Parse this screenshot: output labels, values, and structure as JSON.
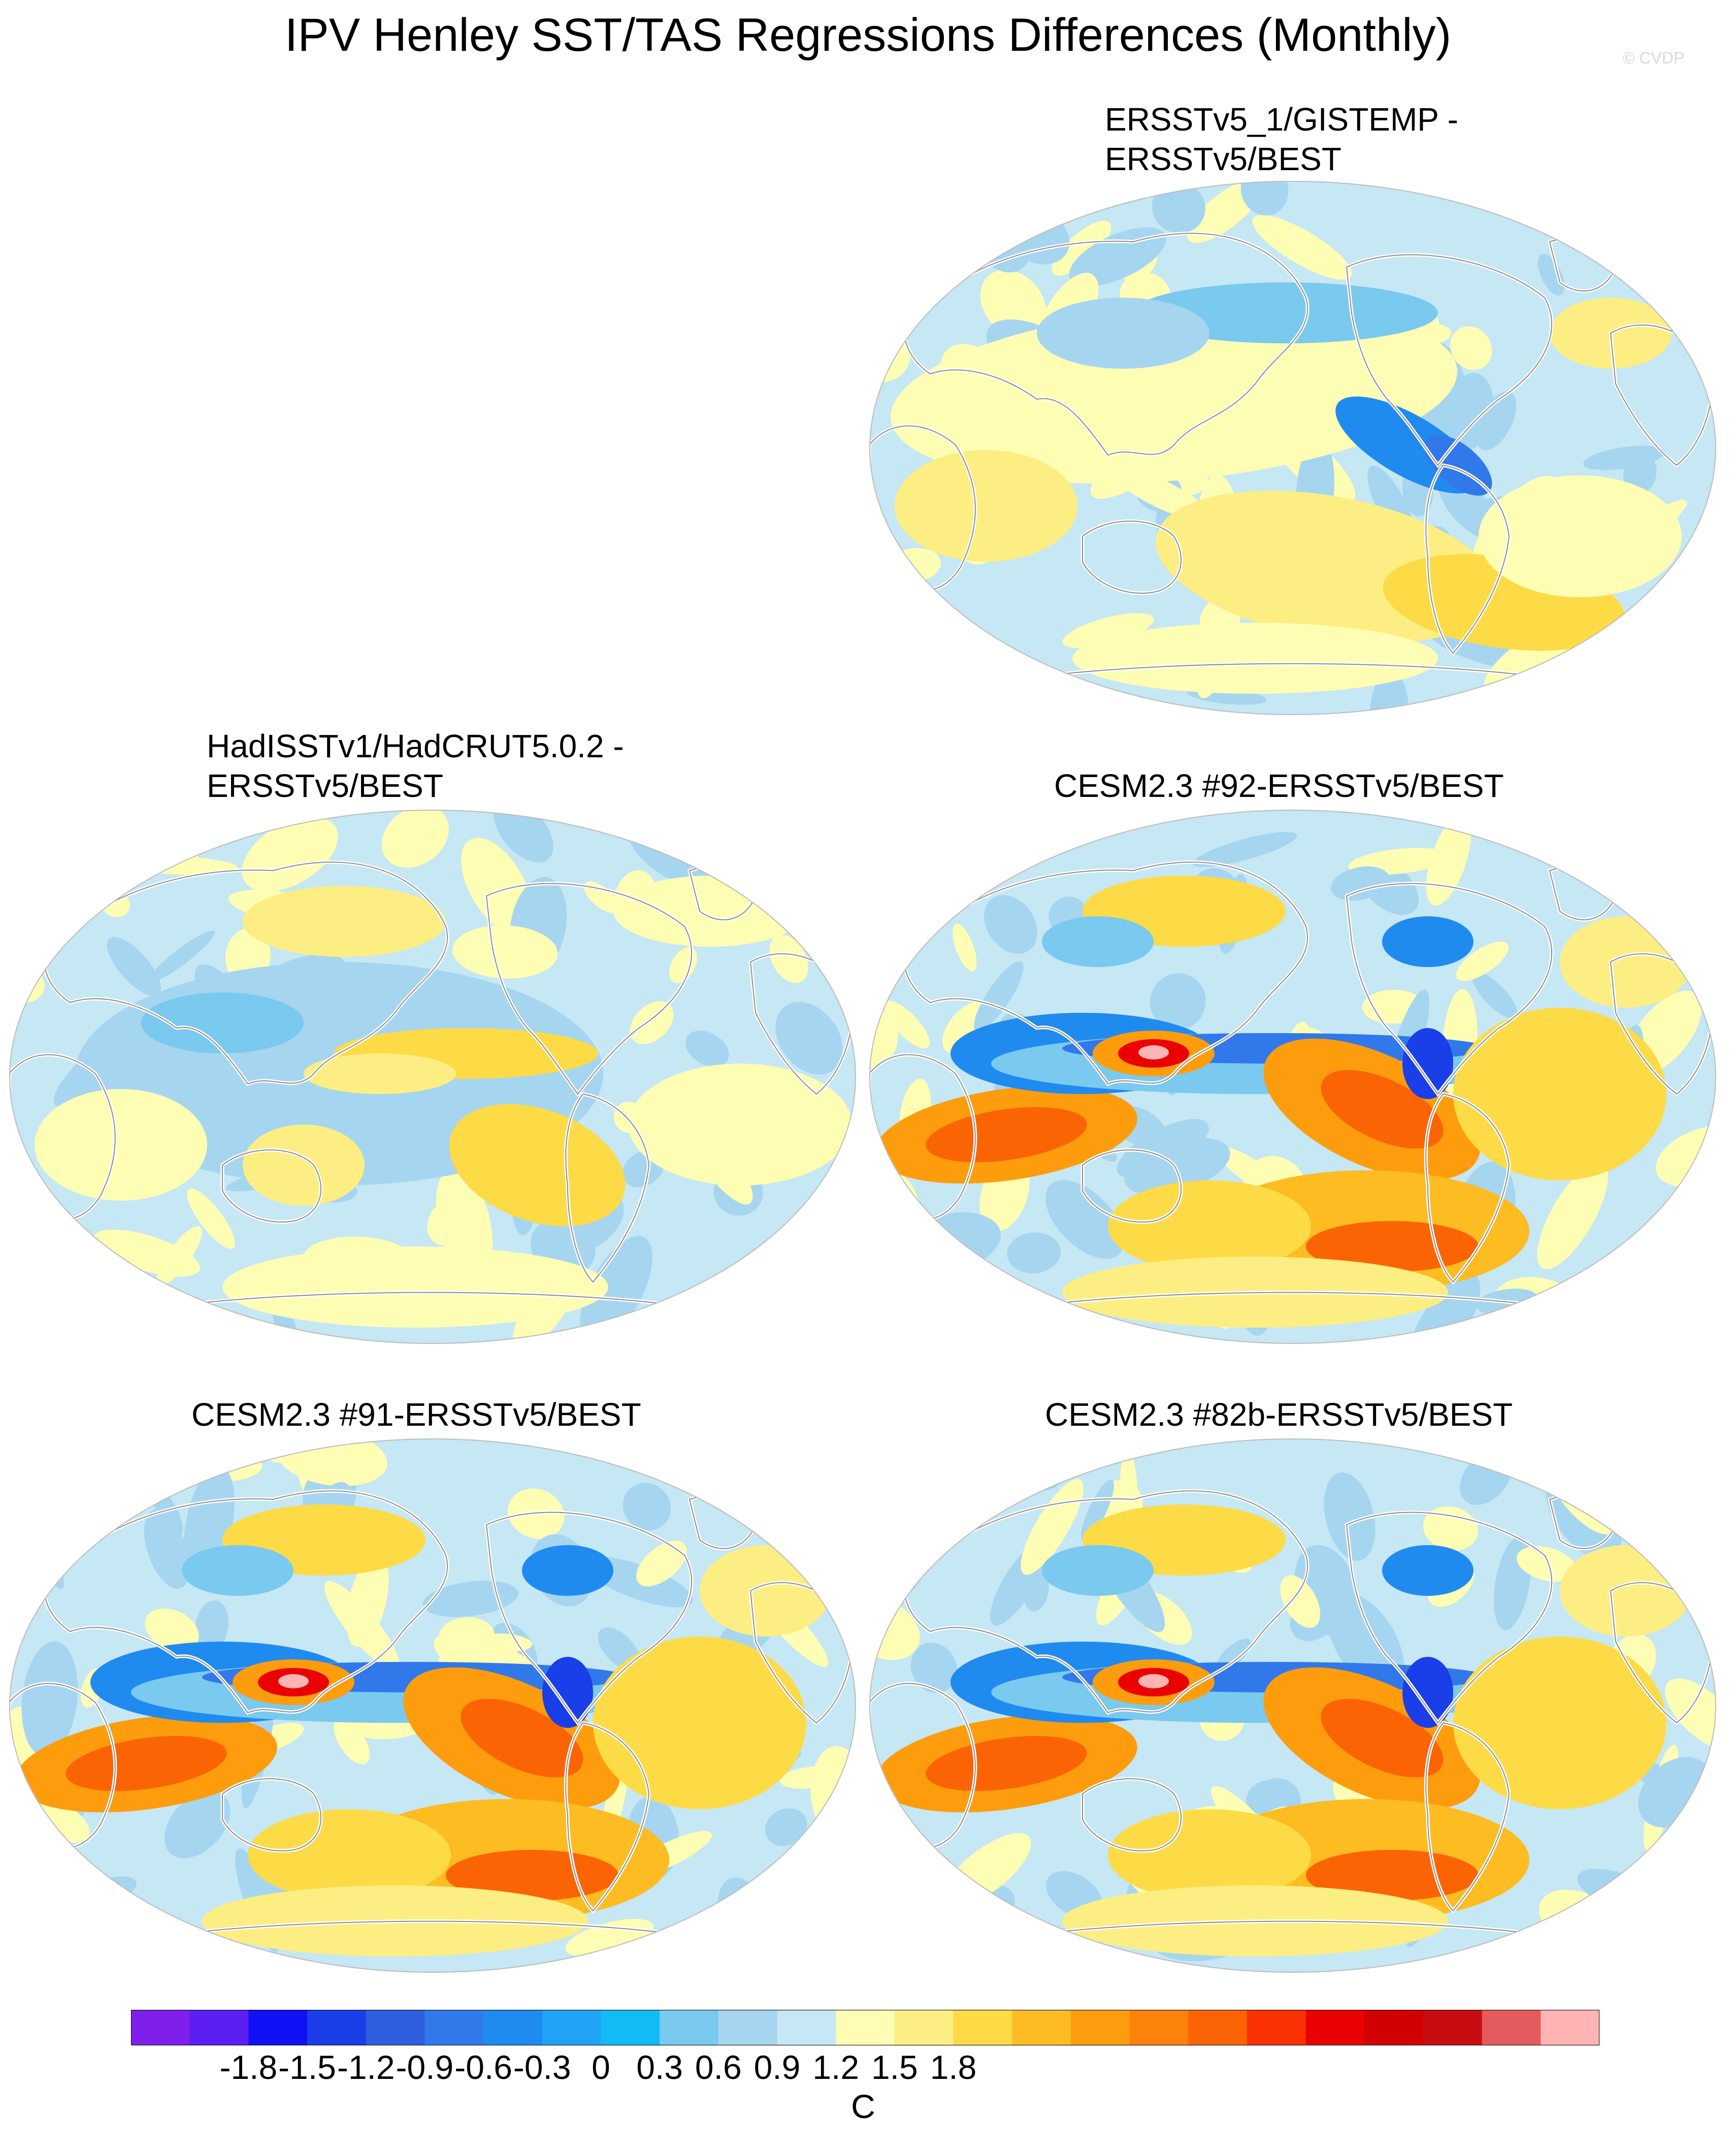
{
  "title": "IPV Henley SST/TAS Regressions Differences (Monthly)",
  "watermark": "© CVDP",
  "panels": [
    {
      "id": "p1",
      "title_line1": "ERSSTv5_1/GISTEMP -",
      "title_line2": "ERSSTv5/BEST",
      "pattern": "weak"
    },
    {
      "id": "p2",
      "title_line1": "HadISSTv1/HadCRUT5.0.2 -",
      "title_line2": "ERSSTv5/BEST",
      "pattern": "weak-mixed"
    },
    {
      "id": "p3",
      "title_line1": "CESM2.3 #92-ERSSTv5/BEST",
      "title_line2": "",
      "pattern": "strong"
    },
    {
      "id": "p4",
      "title_line1": "CESM2.3 #91-ERSSTv5/BEST",
      "title_line2": "",
      "pattern": "strong"
    },
    {
      "id": "p5",
      "title_line1": "CESM2.3 #82b-ERSSTv5/BEST",
      "title_line2": "",
      "pattern": "strong"
    }
  ],
  "colorbar": {
    "unit": "C",
    "tick_labels": [
      "-1.8",
      "-1.5",
      "-1.2",
      "-0.9",
      "-0.6",
      "-0.3",
      "0",
      "0.3",
      "0.6",
      "0.9",
      "1.2",
      "1.5",
      "1.8"
    ],
    "colors": [
      "#7e1fea",
      "#5b1ff3",
      "#1111f5",
      "#1a3ee8",
      "#2e5fdf",
      "#3179ea",
      "#1f8bef",
      "#1ea3f6",
      "#11bbf6",
      "#7ac9ef",
      "#a6d5f0",
      "#c6e7f4",
      "#fefdb4",
      "#fcee82",
      "#fddb46",
      "#fcbc22",
      "#fd9d0d",
      "#fc8209",
      "#fb6404",
      "#fb3103",
      "#ea0202",
      "#d10101",
      "#c80d12",
      "#e55a5c",
      "#ffb4b4"
    ]
  }
}
